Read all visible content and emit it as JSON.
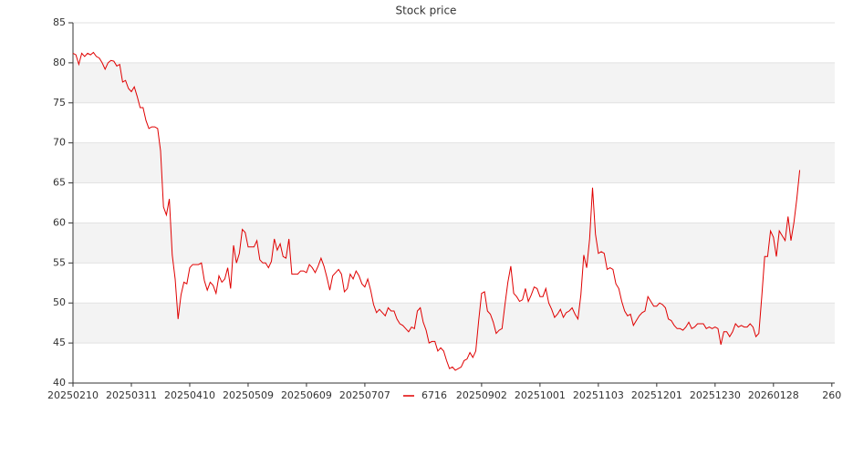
{
  "chart_data": {
    "type": "line",
    "title": "Stock price",
    "categories": [
      "20250210",
      null,
      null,
      null,
      null,
      null,
      null,
      null,
      null,
      null,
      null,
      null,
      null,
      null,
      null,
      null,
      null,
      null,
      null,
      null,
      "20250311",
      null,
      null,
      null,
      null,
      null,
      null,
      null,
      null,
      null,
      null,
      null,
      null,
      null,
      null,
      null,
      null,
      null,
      null,
      null,
      "20250410",
      null,
      null,
      null,
      null,
      null,
      null,
      null,
      null,
      null,
      null,
      null,
      null,
      null,
      null,
      null,
      null,
      null,
      null,
      null,
      "20250509",
      null,
      null,
      null,
      null,
      null,
      null,
      null,
      null,
      null,
      null,
      null,
      null,
      null,
      null,
      null,
      null,
      null,
      null,
      null,
      "20250609",
      null,
      null,
      null,
      null,
      null,
      null,
      null,
      null,
      null,
      null,
      null,
      null,
      null,
      null,
      null,
      null,
      null,
      null,
      null,
      "20250707",
      null,
      null,
      null,
      null,
      null,
      null,
      null,
      null,
      null,
      null,
      null,
      null,
      null,
      null,
      null,
      null,
      null,
      null,
      null,
      null,
      null,
      null,
      null,
      null,
      null,
      null,
      null,
      null,
      null,
      null,
      null,
      null,
      null,
      null,
      null,
      null,
      null,
      null,
      null,
      "20250902",
      null,
      null,
      null,
      null,
      null,
      null,
      null,
      null,
      null,
      null,
      null,
      null,
      null,
      null,
      null,
      null,
      null,
      null,
      null,
      "20251001",
      null,
      null,
      null,
      null,
      null,
      null,
      null,
      null,
      null,
      null,
      null,
      null,
      null,
      null,
      null,
      null,
      null,
      null,
      null,
      "20251103",
      null,
      null,
      null,
      null,
      null,
      null,
      null,
      null,
      null,
      null,
      null,
      null,
      null,
      null,
      null,
      null,
      null,
      null,
      null,
      "20251201",
      null,
      null,
      null,
      null,
      null,
      null,
      null,
      null,
      null,
      null,
      null,
      null,
      null,
      null,
      null,
      null,
      null,
      null,
      null,
      "20251230",
      null,
      null,
      null,
      null,
      null,
      null,
      null,
      null,
      null,
      null,
      null,
      null,
      null,
      null,
      null,
      null,
      null,
      null,
      null,
      "20260128",
      null,
      null,
      null,
      null,
      null,
      null,
      null,
      null,
      null,
      null,
      null,
      null,
      null,
      null,
      null,
      null,
      null,
      null,
      null,
      "260",
      null
    ],
    "series": [
      {
        "name": "6716",
        "color": "#e00000",
        "values": [
          81.2,
          81,
          79.8,
          81.2,
          80.8,
          81.2,
          81,
          81.3,
          80.8,
          80.6,
          80,
          79.2,
          80,
          80.3,
          80.2,
          79.6,
          79.8,
          77.6,
          77.8,
          76.8,
          76.4,
          77,
          75.8,
          74.4,
          74.4,
          72.8,
          71.8,
          72,
          72,
          71.8,
          69,
          62,
          61,
          63,
          56,
          53,
          48,
          51,
          52.6,
          52.4,
          54.4,
          54.8,
          54.8,
          54.8,
          55,
          52.8,
          51.6,
          52.6,
          52.2,
          51.2,
          53.4,
          52.6,
          53,
          54.4,
          51.8,
          57.2,
          55,
          56.2,
          59.2,
          58.8,
          57,
          57,
          57,
          57.8,
          55.4,
          55,
          55,
          54.4,
          55.2,
          58,
          56.6,
          57.4,
          55.8,
          55.6,
          58,
          53.6,
          53.6,
          53.6,
          54,
          54,
          53.8,
          54.8,
          54.4,
          53.8,
          54.6,
          55.6,
          54.6,
          53.2,
          51.6,
          53.4,
          53.8,
          54.2,
          53.6,
          51.4,
          51.8,
          53.6,
          53,
          54,
          53.4,
          52.4,
          52,
          53,
          51.6,
          49.8,
          48.8,
          49.2,
          48.8,
          48.4,
          49.4,
          49,
          49,
          48,
          47.4,
          47.2,
          46.8,
          46.4,
          47,
          46.8,
          49,
          49.4,
          47.6,
          46.6,
          45,
          45.2,
          45.2,
          44,
          44.4,
          44,
          42.8,
          41.8,
          42,
          41.6,
          41.8,
          42,
          42.8,
          43,
          43.8,
          43.2,
          44,
          47.8,
          51.2,
          51.4,
          49,
          48.6,
          47.6,
          46.2,
          46.6,
          46.8,
          49.8,
          52.6,
          54.6,
          51.2,
          50.8,
          50.2,
          50.4,
          51.8,
          50.2,
          51,
          52,
          51.8,
          50.8,
          50.8,
          51.8,
          50,
          49.2,
          48.2,
          48.6,
          49.2,
          48.2,
          48.8,
          49,
          49.4,
          48.6,
          48,
          51,
          56,
          54.4,
          58,
          64.4,
          58.6,
          56.2,
          56.4,
          56.2,
          54.2,
          54.4,
          54.2,
          52.4,
          51.8,
          50.2,
          49,
          48.4,
          48.6,
          47.2,
          47.8,
          48.4,
          48.8,
          49,
          50.8,
          50.2,
          49.6,
          49.6,
          50,
          49.8,
          49.4,
          48,
          47.8,
          47.2,
          46.8,
          46.8,
          46.6,
          47,
          47.6,
          46.8,
          47,
          47.4,
          47.4,
          47.4,
          46.8,
          47,
          46.8,
          47,
          46.8,
          44.8,
          46.4,
          46.4,
          45.8,
          46.4,
          47.4,
          47,
          47.2,
          47,
          47,
          47.4,
          47,
          45.8,
          46.2,
          50.8,
          55.8,
          55.8,
          59,
          58.2,
          55.8,
          59,
          58.4,
          57.8,
          60.8,
          57.8,
          60,
          63,
          66.6,
          null,
          null,
          null,
          null,
          null,
          null,
          null,
          null,
          null,
          null,
          null,
          null
        ]
      }
    ],
    "ylim": [
      40,
      85
    ],
    "yticks": [
      40,
      45,
      50,
      55,
      60,
      65,
      70,
      75,
      80,
      85
    ],
    "grid": true,
    "legend": "bottom"
  }
}
